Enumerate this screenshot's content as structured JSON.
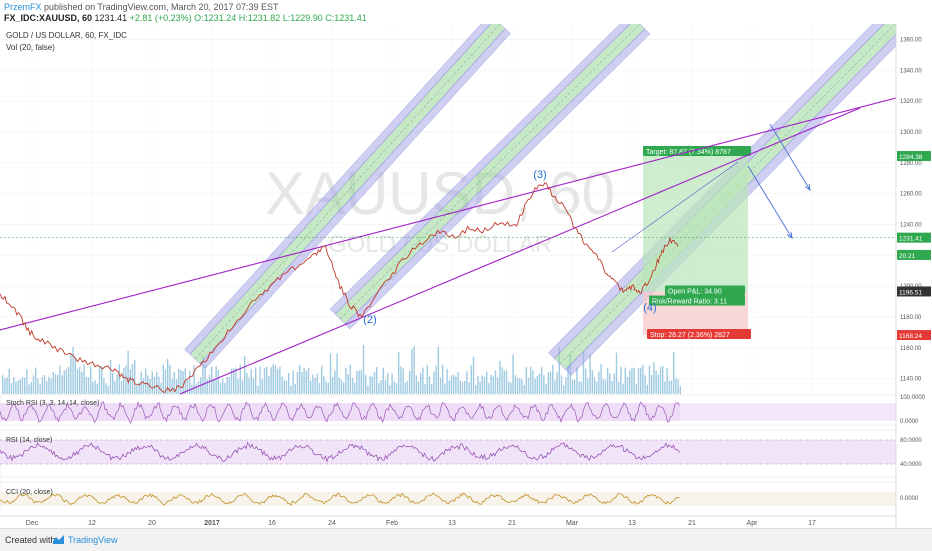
{
  "header": {
    "publisher": "PrzemFX",
    "published_text": "published on TradingView.com, March 20, 2017 07:39 EST",
    "symbol": "FX_IDC:XAUUSD, 60",
    "last": "1231.41",
    "change": "+2.81 (+0.23%)",
    "ohlc": "O:1231.24 H:1231.82 L:1229.90 C:1231.41"
  },
  "chart": {
    "title_line": "GOLD / US DOLLAR, 60, FX_IDC",
    "vol_line": "Vol (20, false)",
    "watermark_big": "XAUUSD, 60",
    "watermark_small": "GOLD / US DOLLAR"
  },
  "indicators": {
    "stoch_rsi": "Stoch RSI (3, 3, 14, 14, close)",
    "rsi": "RSI (14, close)",
    "cci": "CCI (20, close)"
  },
  "chart_data": {
    "type": "line",
    "price_axis": {
      "ticks": [
        1140,
        1160,
        1180,
        1200,
        1220,
        1240,
        1260,
        1280,
        1300,
        1320,
        1340,
        1360
      ],
      "labels": [
        "1140.00",
        "1160.00",
        "1180.00",
        "1200.00",
        "1220.00",
        "1240.00",
        "1260.00",
        "1280.00",
        "1300.00",
        "1320.00",
        "1340.00",
        "1360.00"
      ],
      "range": [
        1130,
        1370
      ]
    },
    "badges": [
      {
        "value": 1284.38,
        "label": "1284.38",
        "color": "#2fa84f"
      },
      {
        "value": 1231.41,
        "label": "1231.41",
        "color": "#2fa84f"
      },
      {
        "value": 1220.21,
        "label": "20.21",
        "color": "#2fa84f"
      },
      {
        "value": 1196.51,
        "label": "1196.51",
        "color": "#333333"
      },
      {
        "value": 1168.24,
        "label": "1168.24",
        "color": "#e53935"
      }
    ],
    "time_axis": [
      "Dec",
      "12",
      "20",
      "2017",
      "16",
      "24",
      "Feb",
      "13",
      "21",
      "Mar",
      "13",
      "21",
      "Apr",
      "17"
    ],
    "stoch_axis": [
      "100.0000",
      "0.0000"
    ],
    "rsi_axis": [
      "80.0000",
      "40.0000"
    ],
    "cci_axis": [
      "0.0000"
    ],
    "price_path": [
      [
        0,
        1195
      ],
      [
        10,
        1188
      ],
      [
        20,
        1180
      ],
      [
        30,
        1170
      ],
      [
        40,
        1165
      ],
      [
        55,
        1160
      ],
      [
        70,
        1155
      ],
      [
        85,
        1150
      ],
      [
        100,
        1148
      ],
      [
        115,
        1146
      ],
      [
        125,
        1140
      ],
      [
        135,
        1138
      ],
      [
        150,
        1136
      ],
      [
        165,
        1132
      ],
      [
        180,
        1134
      ],
      [
        195,
        1145
      ],
      [
        210,
        1156
      ],
      [
        225,
        1168
      ],
      [
        240,
        1180
      ],
      [
        255,
        1192
      ],
      [
        270,
        1200
      ],
      [
        285,
        1208
      ],
      [
        300,
        1214
      ],
      [
        315,
        1220
      ],
      [
        325,
        1225
      ],
      [
        332,
        1214
      ],
      [
        340,
        1200
      ],
      [
        350,
        1188
      ],
      [
        360,
        1180
      ],
      [
        370,
        1188
      ],
      [
        380,
        1200
      ],
      [
        395,
        1210
      ],
      [
        410,
        1222
      ],
      [
        425,
        1230
      ],
      [
        440,
        1236
      ],
      [
        455,
        1232
      ],
      [
        470,
        1238
      ],
      [
        485,
        1236
      ],
      [
        500,
        1242
      ],
      [
        515,
        1238
      ],
      [
        525,
        1252
      ],
      [
        535,
        1262
      ],
      [
        545,
        1266
      ],
      [
        555,
        1258
      ],
      [
        565,
        1250
      ],
      [
        575,
        1238
      ],
      [
        585,
        1228
      ],
      [
        595,
        1222
      ],
      [
        605,
        1210
      ],
      [
        615,
        1202
      ],
      [
        625,
        1196
      ],
      [
        632,
        1200
      ],
      [
        640,
        1196
      ],
      [
        648,
        1202
      ],
      [
        655,
        1212
      ],
      [
        662,
        1222
      ],
      [
        670,
        1230
      ],
      [
        678,
        1226
      ]
    ],
    "annotations": [
      {
        "text": "(2)",
        "x": 370,
        "y": 1176,
        "color": "#2a6fd8"
      },
      {
        "text": "(3)",
        "x": 540,
        "y": 1270,
        "color": "#2a6fd8"
      },
      {
        "text": "(4)",
        "x": 650,
        "y": 1184,
        "color": "#2a6fd8"
      }
    ],
    "position_box": {
      "target_text": "Target: 87.87 (7.34%) 8787",
      "open_pl_text": "Open P&L: 34.90",
      "rr_text": "Risk/Reward Ratio: 3.11",
      "stop_text": "Stop: 28.27 (2.36%) 2827",
      "target_price": 1284.38,
      "entry_price": 1196.51,
      "stop_price": 1168.24
    }
  }
}
